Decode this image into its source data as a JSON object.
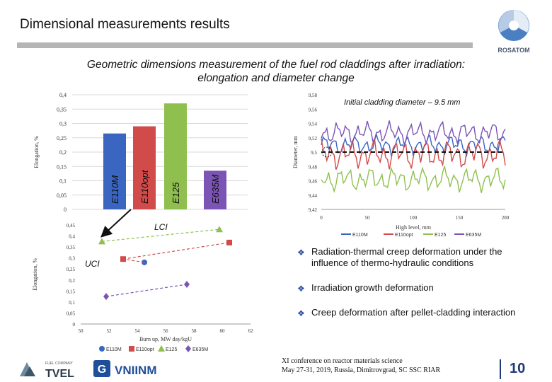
{
  "header": {
    "title": "Dimensional measurements results",
    "logo_text": "ROSATOM",
    "subtitle_line1": "Geometric dimensions measurement of the fuel rod claddings after irradiation:",
    "subtitle_line2": "elongation and diameter change"
  },
  "colors": {
    "E110M": "#3a66c2",
    "E110opt": "#d24b4b",
    "E125": "#8fc04f",
    "E635M": "#7b54b5"
  },
  "chart_data": [
    {
      "type": "bar",
      "ylabel": "Elongation, %",
      "ylim": [
        0,
        0.4
      ],
      "yticks": [
        "0,4",
        "0,35",
        "0,3",
        "0,25",
        "0,2",
        "0,15",
        "0,1",
        "0,05",
        "0"
      ],
      "categories": [
        "E110M",
        "E110opt",
        "E125",
        "E635M"
      ],
      "values": [
        0.265,
        0.29,
        0.37,
        0.135
      ]
    },
    {
      "type": "line",
      "annotation": "Initial cladding diameter – 9.5 mm",
      "xlabel": "High level, mm",
      "ylabel": "Diameter, mm",
      "xlim": [
        0,
        200
      ],
      "ylim": [
        9.42,
        9.58
      ],
      "xticks": [
        "0",
        "50",
        "100",
        "150",
        "200"
      ],
      "yticks": [
        "9,58",
        "9,56",
        "9,54",
        "9,52",
        "9,5",
        "9,48",
        "9,46",
        "9,44",
        "9,42"
      ],
      "reference_line": 9.5,
      "series": [
        {
          "name": "E110M",
          "base": 9.51,
          "amp": 0.008
        },
        {
          "name": "E110opt",
          "base": 9.497,
          "amp": 0.012
        },
        {
          "name": "E125",
          "base": 9.462,
          "amp": 0.01
        },
        {
          "name": "E635M",
          "base": 9.527,
          "amp": 0.009
        }
      ]
    },
    {
      "type": "scatter",
      "xlabel": "Burn up, MW day/kgU",
      "ylabel": "Elongation, %",
      "xlim": [
        50,
        62
      ],
      "ylim": [
        0,
        0.45
      ],
      "xticks": [
        "50",
        "52",
        "54",
        "56",
        "58",
        "60",
        "62"
      ],
      "yticks": [
        "0,45",
        "0,4",
        "0,35",
        "0,3",
        "0,25",
        "0,2",
        "0,15",
        "0,1",
        "0,05",
        "0"
      ],
      "annotations": [
        "LCI",
        "UCI"
      ],
      "series": [
        {
          "name": "E110M",
          "x": [
            54.5
          ],
          "y": [
            0.28
          ]
        },
        {
          "name": "E110opt",
          "x": [
            53.0,
            60.5
          ],
          "y": [
            0.295,
            0.37
          ]
        },
        {
          "name": "E125",
          "x": [
            51.5,
            59.8
          ],
          "y": [
            0.375,
            0.43
          ]
        },
        {
          "name": "E635M",
          "x": [
            51.8,
            57.5
          ],
          "y": [
            0.125,
            0.18
          ]
        }
      ]
    }
  ],
  "bullets": [
    "Radiation-thermal creep deformation under the influence of thermo-hydraulic conditions",
    "Irradiation growth deformation",
    "Creep deformation after pellet-cladding interaction"
  ],
  "footer": {
    "tvel_text": "TVEL",
    "tvel_small": "FUEL COMPANY",
    "vniinm_text": "VNIINM",
    "conference": "XI conference on reactor materials science",
    "conference_details": "May 27-31, 2019, Russia, Dimitrovgrad, SC SSC RIAR",
    "page_number": "10"
  }
}
